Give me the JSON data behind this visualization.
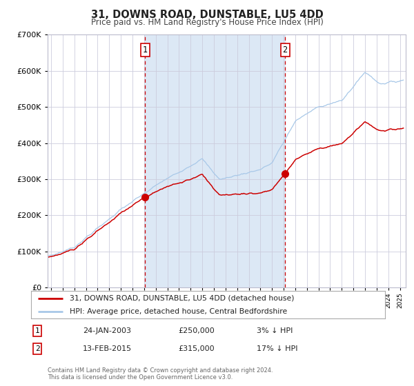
{
  "title": "31, DOWNS ROAD, DUNSTABLE, LU5 4DD",
  "subtitle": "Price paid vs. HM Land Registry's House Price Index (HPI)",
  "legend_line1": "31, DOWNS ROAD, DUNSTABLE, LU5 4DD (detached house)",
  "legend_line2": "HPI: Average price, detached house, Central Bedfordshire",
  "sale1_label": "1",
  "sale2_label": "2",
  "sale1_date": "24-JAN-2003",
  "sale1_price": "£250,000",
  "sale1_hpi": "3% ↓ HPI",
  "sale2_date": "13-FEB-2015",
  "sale2_price": "£315,000",
  "sale2_hpi": "17% ↓ HPI",
  "footer1": "Contains HM Land Registry data © Crown copyright and database right 2024.",
  "footer2": "This data is licensed under the Open Government Licence v3.0.",
  "hpi_color": "#a8c8e8",
  "price_color": "#cc0000",
  "span_color": "#dce8f5",
  "plot_bg": "#ffffff",
  "fig_bg": "#ffffff",
  "grid_color": "#ccccdd",
  "sale1_year": 2003.07,
  "sale1_value": 250000,
  "sale2_year": 2015.12,
  "sale2_value": 315000,
  "ylim_min": 0,
  "ylim_max": 700000,
  "xlim_start": 1994.7,
  "xlim_end": 2025.5
}
